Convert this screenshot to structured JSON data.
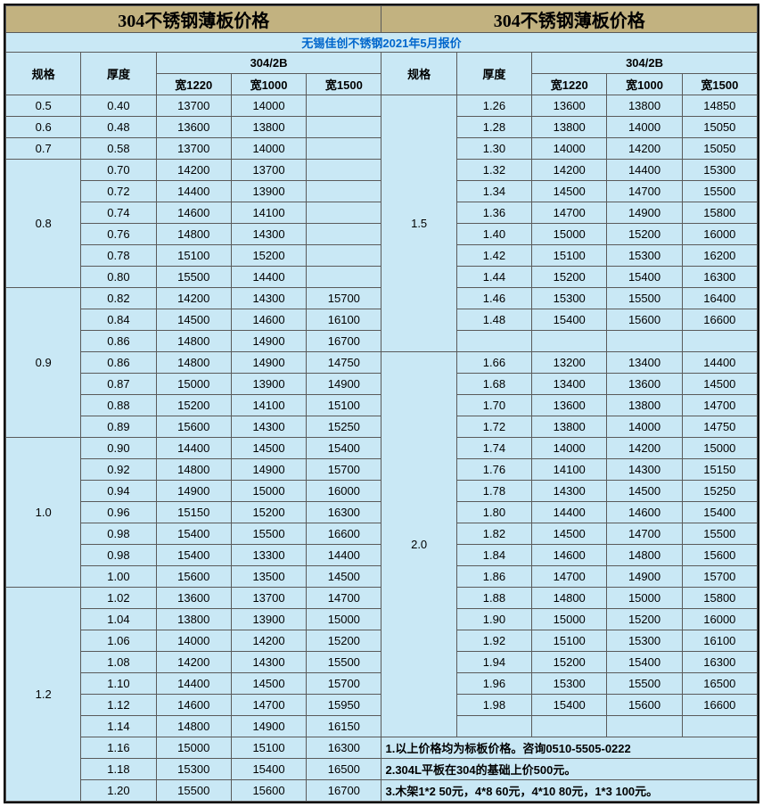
{
  "title_left": "304不锈钢薄板价格",
  "title_right": "304不锈钢薄板价格",
  "subtitle": "无锡佳创不锈钢2021年5月报价",
  "hdr": {
    "spec": "规格",
    "thk": "厚度",
    "grade": "304/2B",
    "w1220": "宽1220",
    "w1000": "宽1000",
    "w1500": "宽1500"
  },
  "colors": {
    "title_bg": "#c2b280",
    "cell_bg": "#c9e8f5",
    "border": "#5a5a5a",
    "subtitle_text": "#0066cc"
  },
  "left_groups": [
    {
      "spec": "0.5",
      "rows": [
        [
          "0.40",
          "13700",
          "14000",
          ""
        ]
      ]
    },
    {
      "spec": "0.6",
      "rows": [
        [
          "0.48",
          "13600",
          "13800",
          ""
        ]
      ]
    },
    {
      "spec": "0.7",
      "rows": [
        [
          "0.58",
          "13700",
          "14000",
          ""
        ]
      ]
    },
    {
      "spec": "0.8",
      "rows": [
        [
          "0.70",
          "14200",
          "13700",
          ""
        ],
        [
          "0.72",
          "14400",
          "13900",
          ""
        ],
        [
          "0.74",
          "14600",
          "14100",
          ""
        ],
        [
          "0.76",
          "14800",
          "14300",
          ""
        ],
        [
          "0.78",
          "15100",
          "15200",
          ""
        ],
        [
          "0.80",
          "15500",
          "14400",
          ""
        ]
      ]
    },
    {
      "spec": "0.9",
      "rows": [
        [
          "0.82",
          "14200",
          "14300",
          "15700"
        ],
        [
          "0.84",
          "14500",
          "14600",
          "16100"
        ],
        [
          "0.86",
          "14800",
          "14900",
          "16700"
        ],
        [
          "0.86",
          "14800",
          "14900",
          "14750"
        ],
        [
          "0.87",
          "15000",
          "13900",
          "14900"
        ],
        [
          "0.88",
          "15200",
          "14100",
          "15100"
        ],
        [
          "0.89",
          "15600",
          "14300",
          "15250"
        ]
      ]
    },
    {
      "spec": "1.0",
      "rows": [
        [
          "0.90",
          "14400",
          "14500",
          "15400"
        ],
        [
          "0.92",
          "14800",
          "14900",
          "15700"
        ],
        [
          "0.94",
          "14900",
          "15000",
          "16000"
        ],
        [
          "0.96",
          "15150",
          "15200",
          "16300"
        ],
        [
          "0.98",
          "15400",
          "15500",
          "16600"
        ],
        [
          "0.98",
          "15400",
          "13300",
          "14400"
        ],
        [
          "1.00",
          "15600",
          "13500",
          "14500"
        ]
      ]
    },
    {
      "spec": "1.2",
      "rows": [
        [
          "1.02",
          "13600",
          "13700",
          "14700"
        ],
        [
          "1.04",
          "13800",
          "13900",
          "15000"
        ],
        [
          "1.06",
          "14000",
          "14200",
          "15200"
        ],
        [
          "1.08",
          "14200",
          "14300",
          "15500"
        ],
        [
          "1.10",
          "14400",
          "14500",
          "15700"
        ],
        [
          "1.12",
          "14600",
          "14700",
          "15950"
        ],
        [
          "1.14",
          "14800",
          "14900",
          "16150"
        ],
        [
          "1.16",
          "15000",
          "15100",
          "16300"
        ],
        [
          "1.18",
          "15300",
          "15400",
          "16500"
        ],
        [
          "1.20",
          "15500",
          "15600",
          "16700"
        ]
      ]
    }
  ],
  "right_groups": [
    {
      "spec": "1.5",
      "rows": [
        [
          "1.26",
          "13600",
          "13800",
          "14850"
        ],
        [
          "1.28",
          "13800",
          "14000",
          "15050"
        ],
        [
          "1.30",
          "14000",
          "14200",
          "15050"
        ],
        [
          "1.32",
          "14200",
          "14400",
          "15300"
        ],
        [
          "1.34",
          "14500",
          "14700",
          "15500"
        ],
        [
          "1.36",
          "14700",
          "14900",
          "15800"
        ],
        [
          "1.40",
          "15000",
          "15200",
          "16000"
        ],
        [
          "1.42",
          "15100",
          "15300",
          "16200"
        ],
        [
          "1.44",
          "15200",
          "15400",
          "16300"
        ],
        [
          "1.46",
          "15300",
          "15500",
          "16400"
        ],
        [
          "1.48",
          "15400",
          "15600",
          "16600"
        ]
      ],
      "blank_after": 1
    },
    {
      "spec": "2.0",
      "rows": [
        [
          "1.66",
          "13200",
          "13400",
          "14400"
        ],
        [
          "1.68",
          "13400",
          "13600",
          "14500"
        ],
        [
          "1.70",
          "13600",
          "13800",
          "14700"
        ],
        [
          "1.72",
          "13800",
          "14000",
          "14750"
        ],
        [
          "1.74",
          "14000",
          "14200",
          "15000"
        ],
        [
          "1.76",
          "14100",
          "14300",
          "15150"
        ],
        [
          "1.78",
          "14300",
          "14500",
          "15250"
        ],
        [
          "1.80",
          "14400",
          "14600",
          "15400"
        ],
        [
          "1.82",
          "14500",
          "14700",
          "15500"
        ],
        [
          "1.84",
          "14600",
          "14800",
          "15600"
        ],
        [
          "1.86",
          "14700",
          "14900",
          "15700"
        ],
        [
          "1.88",
          "14800",
          "15000",
          "15800"
        ],
        [
          "1.90",
          "15000",
          "15200",
          "16000"
        ],
        [
          "1.92",
          "15100",
          "15300",
          "16100"
        ],
        [
          "1.94",
          "15200",
          "15400",
          "16300"
        ],
        [
          "1.96",
          "15300",
          "15500",
          "16500"
        ],
        [
          "1.98",
          "15400",
          "15600",
          "16600"
        ]
      ],
      "blank_after": 1
    }
  ],
  "notes": [
    "1.以上价格均为标板价格。咨询0510-5505-0222",
    "2.304L平板在304的基础上价500元。",
    "3.木架1*2 50元，4*8 60元，4*10 80元，1*3 100元。"
  ]
}
